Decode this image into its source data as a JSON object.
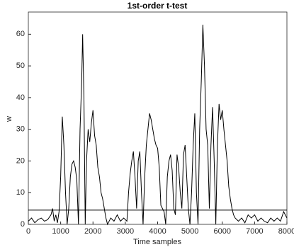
{
  "chart_data": {
    "type": "line",
    "title": "1st-order t-test",
    "x_label": "Time samples",
    "y_label": "w",
    "x": [
      0,
      100,
      200,
      300,
      400,
      500,
      600,
      700,
      750,
      800,
      850,
      900,
      950,
      1000,
      1050,
      1100,
      1150,
      1200,
      1250,
      1300,
      1350,
      1400,
      1450,
      1500,
      1550,
      1600,
      1650,
      1680,
      1720,
      1760,
      1800,
      1850,
      1900,
      1950,
      2000,
      2050,
      2100,
      2150,
      2200,
      2250,
      2300,
      2350,
      2400,
      2450,
      2550,
      2650,
      2750,
      2850,
      2950,
      3050,
      3100,
      3150,
      3200,
      3250,
      3300,
      3350,
      3400,
      3450,
      3500,
      3550,
      3600,
      3650,
      3700,
      3750,
      3800,
      3850,
      3900,
      3950,
      4000,
      4050,
      4100,
      4200,
      4250,
      4300,
      4350,
      4400,
      4450,
      4500,
      4550,
      4600,
      4650,
      4700,
      4750,
      4800,
      4850,
      4900,
      4950,
      5000,
      5050,
      5100,
      5150,
      5200,
      5250,
      5300,
      5350,
      5400,
      5450,
      5500,
      5550,
      5600,
      5650,
      5700,
      5750,
      5800,
      5850,
      5900,
      5950,
      6000,
      6050,
      6100,
      6150,
      6200,
      6250,
      6300,
      6350,
      6400,
      6500,
      6600,
      6700,
      6800,
      6900,
      7000,
      7100,
      7200,
      7300,
      7400,
      7500,
      7600,
      7700,
      7800,
      7900,
      8000
    ],
    "series": [
      {
        "color": "#000000",
        "values": [
          1,
          2,
          0.5,
          1.5,
          2,
          1,
          1.5,
          3,
          5,
          1,
          3,
          0.5,
          4,
          15,
          34,
          25,
          10,
          0,
          5,
          15,
          19,
          20,
          18,
          14,
          0,
          30,
          45,
          60,
          40,
          0,
          20,
          30,
          26,
          32,
          36,
          28,
          25,
          18,
          15,
          10,
          8,
          5,
          2,
          0,
          2,
          1,
          3,
          1,
          2,
          1,
          10,
          16,
          20,
          23,
          15,
          5,
          20,
          23,
          10,
          0,
          15,
          25,
          30,
          35,
          33,
          30,
          27,
          25,
          24,
          18,
          6,
          4,
          0,
          15,
          20,
          22,
          17,
          5,
          3,
          22,
          18,
          10,
          5,
          22,
          25,
          15,
          5,
          0,
          10,
          25,
          35,
          10,
          0,
          30,
          45,
          63,
          50,
          30,
          25,
          5,
          25,
          37,
          20,
          0,
          25,
          38,
          33,
          36,
          30,
          25,
          20,
          12,
          8,
          5,
          3,
          2,
          1,
          2,
          0.5,
          3,
          2,
          3,
          1,
          2,
          1,
          0.5,
          2,
          1,
          2,
          1,
          4,
          2
        ]
      }
    ],
    "threshold": 4.5,
    "xlim": [
      0,
      8000
    ],
    "xticks": [
      0,
      1000,
      2000,
      3000,
      4000,
      5000,
      6000,
      7000,
      8000
    ],
    "ylim": [
      0,
      67
    ],
    "yticks": [
      0,
      10,
      20,
      30,
      40,
      50,
      60
    ]
  }
}
